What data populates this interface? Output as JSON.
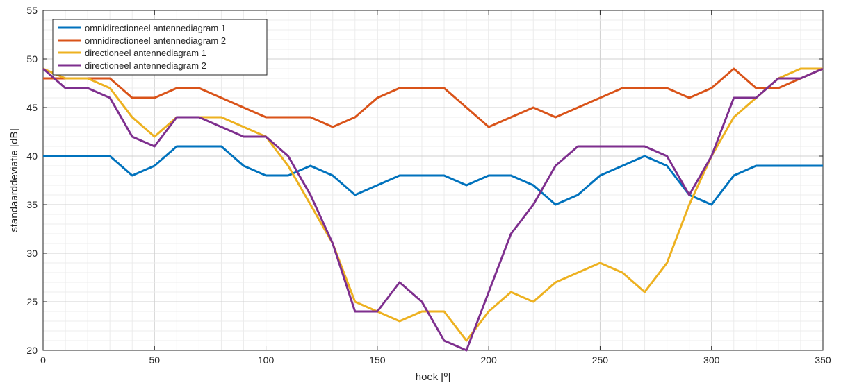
{
  "chart_data": {
    "type": "line",
    "title": "",
    "xlabel": "hoek [º]",
    "ylabel": "standaarddeviatie [dB]",
    "xlim": [
      0,
      350
    ],
    "ylim": [
      20,
      55
    ],
    "xticks": [
      0,
      50,
      100,
      150,
      200,
      250,
      300,
      350
    ],
    "yticks": [
      20,
      25,
      30,
      35,
      40,
      45,
      50,
      55
    ],
    "grid": "on (major and minor)",
    "legend_position": "top-left",
    "x": [
      0,
      10,
      20,
      30,
      40,
      50,
      60,
      70,
      80,
      90,
      100,
      110,
      120,
      130,
      140,
      150,
      160,
      170,
      180,
      190,
      200,
      210,
      220,
      230,
      240,
      250,
      260,
      270,
      280,
      290,
      300,
      310,
      320,
      330,
      340,
      350
    ],
    "series": [
      {
        "name": "omnidirectioneel antennediagram 1",
        "color": "#0072BD",
        "values": [
          40,
          40,
          40,
          40,
          38,
          39,
          41,
          41,
          41,
          39,
          38,
          38,
          39,
          38,
          36,
          37,
          38,
          38,
          38,
          37,
          38,
          38,
          37,
          35,
          36,
          38,
          39,
          40,
          39,
          36,
          35,
          38,
          39,
          39,
          39,
          39
        ]
      },
      {
        "name": "omnidirectioneel antennediagram 2",
        "color": "#D95319",
        "values": [
          48,
          48,
          48,
          48,
          46,
          46,
          47,
          47,
          46,
          45,
          44,
          44,
          44,
          43,
          44,
          46,
          47,
          47,
          47,
          45,
          43,
          44,
          45,
          44,
          45,
          46,
          47,
          47,
          47,
          46,
          47,
          49,
          47,
          47,
          48,
          49
        ]
      },
      {
        "name": "directioneel antennediagram 1",
        "color": "#EDB120",
        "values": [
          49,
          48,
          48,
          47,
          44,
          42,
          44,
          44,
          44,
          43,
          42,
          39,
          35,
          31,
          25,
          24,
          23,
          24,
          24,
          21,
          24,
          26,
          25,
          27,
          28,
          29,
          28,
          26,
          29,
          35,
          40,
          44,
          46,
          48,
          49,
          49
        ]
      },
      {
        "name": "directioneel antennediagram 2",
        "color": "#7E2F8E",
        "values": [
          49,
          47,
          47,
          46,
          42,
          41,
          44,
          44,
          43,
          42,
          42,
          40,
          36,
          31,
          24,
          24,
          27,
          25,
          21,
          20,
          26,
          32,
          35,
          39,
          41,
          41,
          41,
          41,
          40,
          36,
          40,
          46,
          46,
          48,
          48,
          49
        ]
      }
    ]
  }
}
